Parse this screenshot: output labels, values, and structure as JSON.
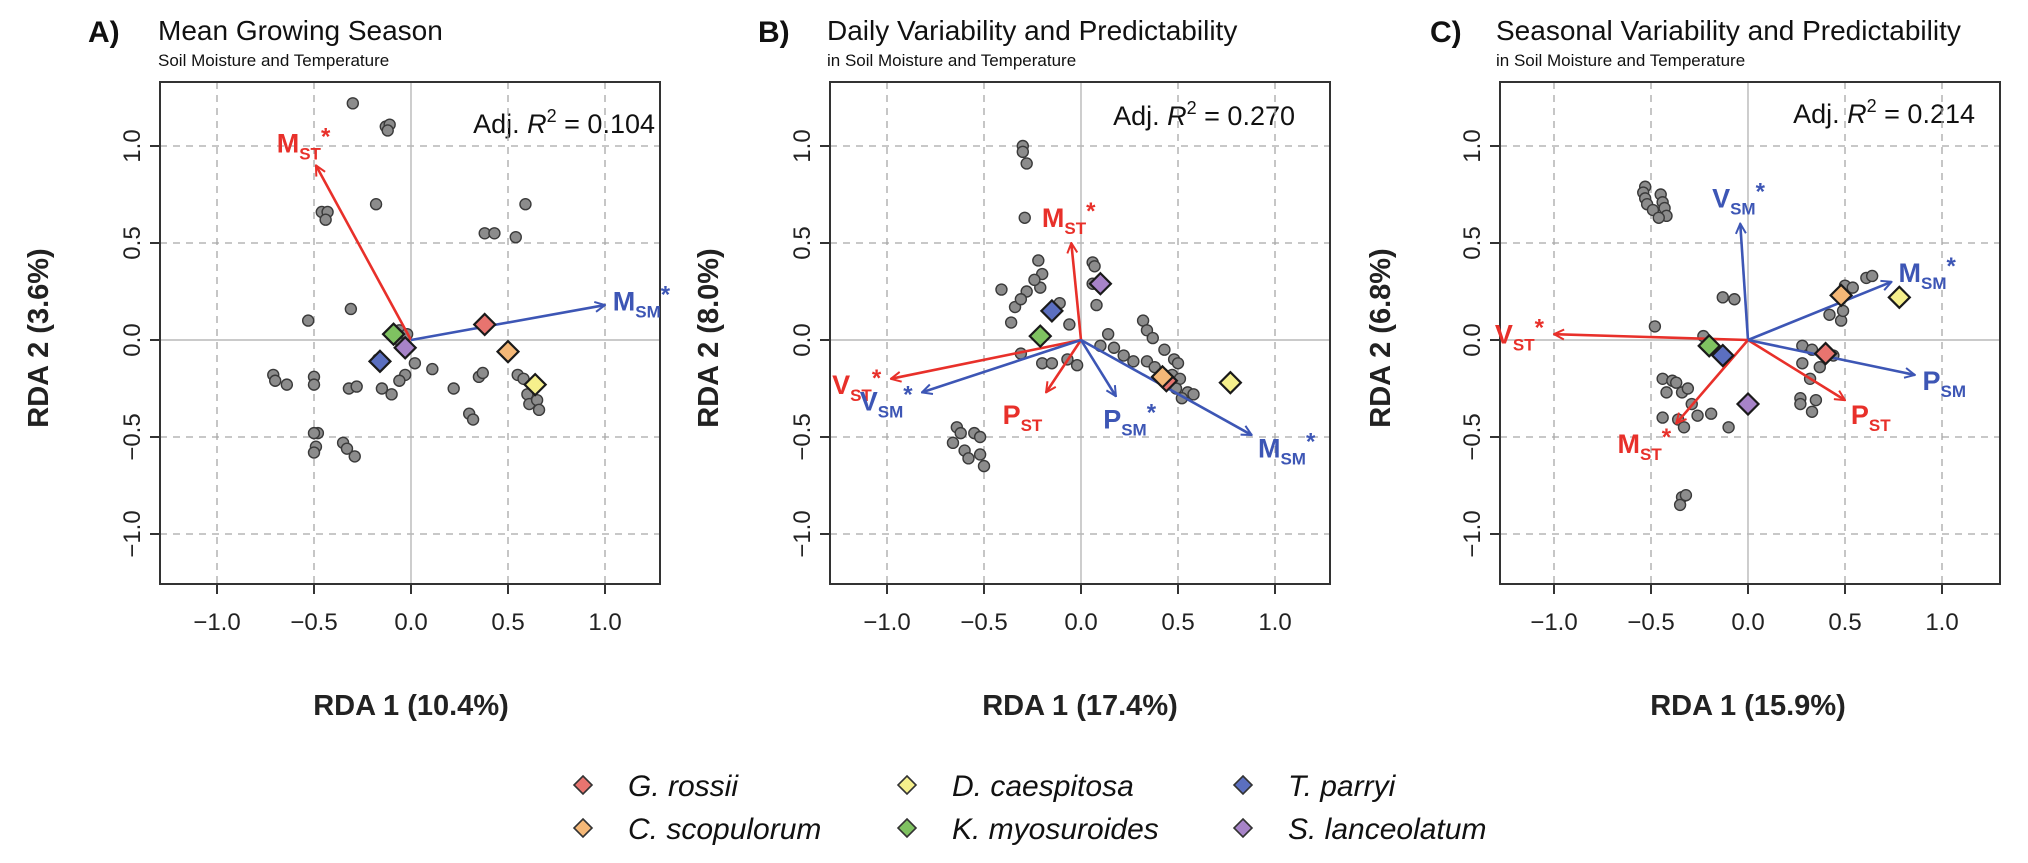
{
  "chart_data": [
    {
      "type": "scatter",
      "panel": "A)",
      "title": "Mean Growing Season",
      "subtitle": "Soil Moisture and Temperature",
      "xlabel": "RDA 1 (10.4%)",
      "ylabel": "RDA 2 (3.6%)",
      "r2_prefix": "Adj. ",
      "r2_sym": "R",
      "r2_exp": "2",
      "r2_value": " = 0.104",
      "xlim": [
        -1.3,
        1.3
      ],
      "ylim": [
        -1.3,
        1.3
      ],
      "xticks": [
        -1.0,
        -0.5,
        0.0,
        0.5,
        1.0
      ],
      "yticks": [
        -1.0,
        -0.5,
        0.0,
        0.5,
        1.0
      ],
      "grid": true,
      "points": [
        [
          -0.3,
          1.22
        ],
        [
          -0.13,
          1.1
        ],
        [
          -0.11,
          1.11
        ],
        [
          -0.12,
          1.08
        ],
        [
          -0.18,
          0.7
        ],
        [
          -0.46,
          0.66
        ],
        [
          -0.43,
          0.66
        ],
        [
          -0.44,
          0.62
        ],
        [
          -0.31,
          0.16
        ],
        [
          -0.53,
          0.1
        ],
        [
          -0.06,
          0.05
        ],
        [
          -0.02,
          0.03
        ],
        [
          -0.05,
          -0.02
        ],
        [
          -0.17,
          -0.1
        ],
        [
          -0.71,
          -0.18
        ],
        [
          -0.7,
          -0.21
        ],
        [
          -0.5,
          -0.19
        ],
        [
          -0.64,
          -0.23
        ],
        [
          -0.5,
          -0.23
        ],
        [
          -0.32,
          -0.25
        ],
        [
          -0.28,
          -0.24
        ],
        [
          -0.03,
          -0.18
        ],
        [
          0.02,
          -0.12
        ],
        [
          0.11,
          -0.15
        ],
        [
          0.22,
          -0.25
        ],
        [
          -0.15,
          -0.25
        ],
        [
          -0.06,
          -0.21
        ],
        [
          -0.1,
          -0.28
        ],
        [
          0.35,
          -0.19
        ],
        [
          0.37,
          -0.17
        ],
        [
          0.55,
          -0.18
        ],
        [
          0.58,
          -0.2
        ],
        [
          0.6,
          -0.28
        ],
        [
          0.61,
          -0.33
        ],
        [
          0.65,
          -0.31
        ],
        [
          0.66,
          -0.36
        ],
        [
          0.3,
          -0.38
        ],
        [
          0.32,
          -0.41
        ],
        [
          -0.48,
          -0.48
        ],
        [
          -0.5,
          -0.48
        ],
        [
          -0.35,
          -0.53
        ],
        [
          -0.33,
          -0.56
        ],
        [
          -0.29,
          -0.6
        ],
        [
          -0.49,
          -0.55
        ],
        [
          -0.5,
          -0.58
        ],
        [
          0.38,
          0.55
        ],
        [
          0.43,
          0.55
        ],
        [
          0.54,
          0.53
        ],
        [
          0.59,
          0.7
        ]
      ],
      "species": [
        {
          "name": "G. rossii",
          "x": 0.38,
          "y": 0.08
        },
        {
          "name": "C. scopulorum",
          "x": 0.5,
          "y": -0.06
        },
        {
          "name": "D. caespitosa",
          "x": 0.64,
          "y": -0.23
        },
        {
          "name": "K. myosuroides",
          "x": -0.09,
          "y": 0.03
        },
        {
          "name": "T. parryi",
          "x": -0.16,
          "y": -0.11
        },
        {
          "name": "S. lanceolatum",
          "x": -0.03,
          "y": -0.04
        }
      ],
      "vectors": [
        {
          "base": "M",
          "sub": "ST",
          "star": "*",
          "x": -0.49,
          "y": 0.9,
          "color": "#e8302a"
        },
        {
          "base": "M",
          "sub": "SM",
          "star": "*",
          "x": 1.0,
          "y": 0.18,
          "color": "#3d56b5"
        }
      ]
    },
    {
      "type": "scatter",
      "panel": "B)",
      "title": "Daily Variability and Predictability",
      "subtitle": "in Soil Moisture and Temperature",
      "xlabel": "RDA 1 (17.4%)",
      "ylabel": "RDA 2 (8.0%)",
      "r2_prefix": "Adj. ",
      "r2_sym": "R",
      "r2_exp": "2",
      "r2_value": " = 0.270",
      "xlim": [
        -1.3,
        1.3
      ],
      "ylim": [
        -1.3,
        1.3
      ],
      "xticks": [
        -1.0,
        -0.5,
        0.0,
        0.5,
        1.0
      ],
      "yticks": [
        -1.0,
        -0.5,
        0.0,
        0.5,
        1.0
      ],
      "grid": true,
      "points": [
        [
          -0.3,
          1.0
        ],
        [
          -0.3,
          0.97
        ],
        [
          -0.28,
          0.91
        ],
        [
          -0.29,
          0.63
        ],
        [
          -0.22,
          0.41
        ],
        [
          -0.2,
          0.34
        ],
        [
          -0.21,
          0.27
        ],
        [
          -0.24,
          0.31
        ],
        [
          -0.28,
          0.25
        ],
        [
          -0.41,
          0.26
        ],
        [
          -0.34,
          0.17
        ],
        [
          -0.31,
          0.21
        ],
        [
          -0.36,
          0.09
        ],
        [
          -0.11,
          0.19
        ],
        [
          -0.06,
          0.08
        ],
        [
          0.06,
          0.4
        ],
        [
          0.07,
          0.38
        ],
        [
          0.06,
          0.29
        ],
        [
          0.08,
          0.18
        ],
        [
          0.14,
          0.03
        ],
        [
          0.1,
          -0.03
        ],
        [
          0.17,
          -0.04
        ],
        [
          0.22,
          -0.08
        ],
        [
          0.27,
          -0.11
        ],
        [
          0.32,
          0.1
        ],
        [
          0.34,
          0.05
        ],
        [
          0.37,
          0.01
        ],
        [
          0.34,
          -0.11
        ],
        [
          0.38,
          -0.14
        ],
        [
          0.43,
          -0.05
        ],
        [
          0.48,
          -0.1
        ],
        [
          0.5,
          -0.12
        ],
        [
          0.47,
          -0.18
        ],
        [
          0.51,
          -0.2
        ],
        [
          0.49,
          -0.25
        ],
        [
          0.55,
          -0.27
        ],
        [
          0.58,
          -0.28
        ],
        [
          0.52,
          -0.3
        ],
        [
          0.45,
          -0.21
        ],
        [
          -0.31,
          -0.07
        ],
        [
          -0.2,
          -0.12
        ],
        [
          -0.15,
          -0.12
        ],
        [
          -0.07,
          -0.1
        ],
        [
          -0.02,
          -0.13
        ],
        [
          -0.64,
          -0.45
        ],
        [
          -0.62,
          -0.48
        ],
        [
          -0.66,
          -0.53
        ],
        [
          -0.6,
          -0.57
        ],
        [
          -0.58,
          -0.61
        ],
        [
          -0.55,
          -0.48
        ],
        [
          -0.52,
          -0.5
        ],
        [
          -0.52,
          -0.59
        ],
        [
          -0.5,
          -0.65
        ]
      ],
      "species": [
        {
          "name": "G. rossii",
          "x": 0.44,
          "y": -0.21
        },
        {
          "name": "C. scopulorum",
          "x": 0.42,
          "y": -0.19
        },
        {
          "name": "D. caespitosa",
          "x": 0.77,
          "y": -0.22
        },
        {
          "name": "K. myosuroides",
          "x": -0.21,
          "y": 0.02
        },
        {
          "name": "T. parryi",
          "x": -0.15,
          "y": 0.15
        },
        {
          "name": "S. lanceolatum",
          "x": 0.1,
          "y": 0.29
        }
      ],
      "vectors": [
        {
          "base": "M",
          "sub": "ST",
          "star": "*",
          "x": -0.05,
          "y": 0.5,
          "color": "#e8302a"
        },
        {
          "base": "V",
          "sub": "ST",
          "star": "*",
          "x": -0.98,
          "y": -0.2,
          "color": "#e8302a"
        },
        {
          "base": "P",
          "sub": "ST",
          "star": "",
          "x": -0.18,
          "y": -0.27,
          "color": "#e8302a"
        },
        {
          "base": "V",
          "sub": "SM",
          "star": "*",
          "x": -0.82,
          "y": -0.27,
          "color": "#3d56b5"
        },
        {
          "base": "P",
          "sub": "SM",
          "star": "*",
          "x": 0.18,
          "y": -0.29,
          "color": "#3d56b5"
        },
        {
          "base": "M",
          "sub": "SM",
          "star": "*",
          "x": 0.88,
          "y": -0.49,
          "color": "#3d56b5"
        }
      ]
    },
    {
      "type": "scatter",
      "panel": "C)",
      "title": "Seasonal Variability and Predictability",
      "subtitle": "in Soil Moisture and Temperature",
      "xlabel": "RDA 1 (15.9%)",
      "ylabel": "RDA 2 (6.8%)",
      "r2_prefix": "Adj. ",
      "r2_sym": "R",
      "r2_exp": "2",
      "r2_value": " = 0.214",
      "xlim": [
        -1.3,
        1.3
      ],
      "ylim": [
        -1.3,
        1.3
      ],
      "xticks": [
        -1.0,
        -0.5,
        0.0,
        0.5,
        1.0
      ],
      "yticks": [
        -1.0,
        -0.5,
        0.0,
        0.5,
        1.0
      ],
      "grid": true,
      "points": [
        [
          -0.53,
          0.79
        ],
        [
          -0.54,
          0.76
        ],
        [
          -0.53,
          0.73
        ],
        [
          -0.52,
          0.7
        ],
        [
          -0.49,
          0.67
        ],
        [
          -0.45,
          0.75
        ],
        [
          -0.44,
          0.71
        ],
        [
          -0.43,
          0.68
        ],
        [
          -0.42,
          0.64
        ],
        [
          -0.46,
          0.63
        ],
        [
          -0.48,
          0.07
        ],
        [
          -0.23,
          0.02
        ],
        [
          -0.13,
          0.22
        ],
        [
          -0.07,
          0.21
        ],
        [
          -0.44,
          -0.2
        ],
        [
          -0.39,
          -0.21
        ],
        [
          -0.34,
          -0.27
        ],
        [
          -0.37,
          -0.22
        ],
        [
          -0.42,
          -0.27
        ],
        [
          -0.31,
          -0.25
        ],
        [
          -0.29,
          -0.33
        ],
        [
          -0.36,
          -0.41
        ],
        [
          -0.33,
          -0.45
        ],
        [
          -0.44,
          -0.4
        ],
        [
          -0.26,
          -0.39
        ],
        [
          -0.19,
          -0.38
        ],
        [
          -0.1,
          -0.45
        ],
        [
          -0.34,
          -0.81
        ],
        [
          -0.32,
          -0.8
        ],
        [
          -0.35,
          -0.85
        ],
        [
          0.28,
          -0.03
        ],
        [
          0.33,
          -0.05
        ],
        [
          0.28,
          -0.12
        ],
        [
          0.37,
          -0.14
        ],
        [
          0.44,
          -0.08
        ],
        [
          0.32,
          -0.2
        ],
        [
          0.27,
          -0.3
        ],
        [
          0.35,
          -0.31
        ],
        [
          0.33,
          -0.37
        ],
        [
          0.27,
          -0.33
        ],
        [
          0.48,
          0.1
        ],
        [
          0.49,
          0.15
        ],
        [
          0.42,
          0.13
        ],
        [
          0.5,
          0.28
        ],
        [
          0.54,
          0.27
        ],
        [
          0.61,
          0.32
        ],
        [
          0.64,
          0.33
        ]
      ],
      "species": [
        {
          "name": "G. rossii",
          "x": 0.4,
          "y": -0.07
        },
        {
          "name": "C. scopulorum",
          "x": 0.48,
          "y": 0.23
        },
        {
          "name": "D. caespitosa",
          "x": 0.78,
          "y": 0.22
        },
        {
          "name": "K. myosuroides",
          "x": -0.2,
          "y": -0.03
        },
        {
          "name": "T. parryi",
          "x": -0.13,
          "y": -0.08
        },
        {
          "name": "S. lanceolatum",
          "x": 0.0,
          "y": -0.33
        }
      ],
      "vectors": [
        {
          "base": "V",
          "sub": "SM",
          "star": "*",
          "x": -0.04,
          "y": 0.6,
          "color": "#3d56b5"
        },
        {
          "base": "V",
          "sub": "ST",
          "star": "*",
          "x": -1.0,
          "y": 0.03,
          "color": "#e8302a"
        },
        {
          "base": "M",
          "sub": "ST",
          "star": "*",
          "x": -0.37,
          "y": -0.43,
          "color": "#e8302a"
        },
        {
          "base": "P",
          "sub": "ST",
          "star": "",
          "x": 0.5,
          "y": -0.31,
          "color": "#e8302a"
        },
        {
          "base": "M",
          "sub": "SM",
          "star": "*",
          "x": 0.74,
          "y": 0.3,
          "color": "#3d56b5"
        },
        {
          "base": "P",
          "sub": "SM",
          "star": "",
          "x": 0.86,
          "y": -0.18,
          "color": "#3d56b5"
        }
      ]
    }
  ],
  "legend": [
    {
      "name": "G. rossii",
      "color": "#e8746f"
    },
    {
      "name": "C. scopulorum",
      "color": "#f5b877"
    },
    {
      "name": "D. caespitosa",
      "color": "#f6f08c"
    },
    {
      "name": "K. myosuroides",
      "color": "#7fc261"
    },
    {
      "name": "T. parryi",
      "color": "#5b6fc0"
    },
    {
      "name": "S. lanceolatum",
      "color": "#a783c8"
    }
  ],
  "colors": {
    "temperature_vector": "#e8302a",
    "moisture_vector": "#3d56b5",
    "site_point": "#8c8c8c",
    "grid": "#a8a8a8"
  }
}
